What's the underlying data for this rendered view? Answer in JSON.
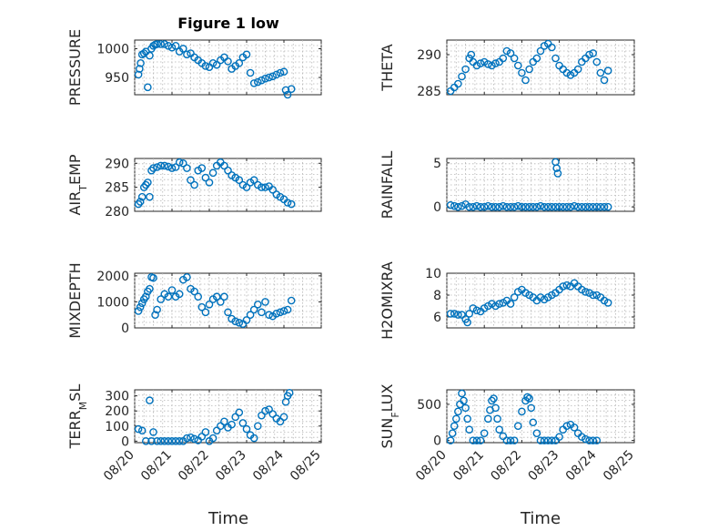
{
  "figure": {
    "title": "Figure 1 low"
  },
  "colors": {
    "series": "#0072BD",
    "axis": "#262626",
    "grid": "#b5b5b5"
  },
  "x_axis": {
    "label": "Time",
    "tick_labels": [
      "08/20",
      "08/21",
      "08/22",
      "08/23",
      "08/24",
      "08/25"
    ],
    "range_days": [
      0,
      5
    ]
  },
  "chart_data": [
    {
      "type": "scatter",
      "ylabel": "PRESSURE",
      "ylim": [
        920,
        1015
      ],
      "yticks": [
        950,
        1000
      ],
      "grid": true,
      "x": [
        0.1,
        0.13,
        0.16,
        0.2,
        0.25,
        0.3,
        0.35,
        0.4,
        0.45,
        0.5,
        0.55,
        0.6,
        0.7,
        0.8,
        0.9,
        1.0,
        1.1,
        1.2,
        1.3,
        1.4,
        1.5,
        1.6,
        1.7,
        1.8,
        1.9,
        2.0,
        2.1,
        2.2,
        2.3,
        2.4,
        2.5,
        2.6,
        2.7,
        2.8,
        2.9,
        3.0,
        3.1,
        3.2,
        3.3,
        3.4,
        3.5,
        3.6,
        3.7,
        3.8,
        3.9,
        4.0,
        4.05,
        4.1,
        4.2
      ],
      "y": [
        955,
        965,
        975,
        990,
        992,
        995,
        933,
        988,
        1000,
        1005,
        1007,
        1008,
        1008,
        1008,
        1005,
        1002,
        1005,
        995,
        1000,
        990,
        992,
        985,
        980,
        975,
        970,
        968,
        975,
        972,
        980,
        985,
        978,
        965,
        970,
        975,
        985,
        990,
        958,
        940,
        942,
        945,
        948,
        950,
        952,
        955,
        958,
        960,
        928,
        920,
        930
      ]
    },
    {
      "type": "scatter",
      "ylabel": "THETA",
      "ylim": [
        284.5,
        292
      ],
      "yticks": [
        285,
        290
      ],
      "grid": true,
      "x": [
        0.1,
        0.2,
        0.3,
        0.4,
        0.5,
        0.6,
        0.65,
        0.7,
        0.8,
        0.9,
        1.0,
        1.1,
        1.2,
        1.3,
        1.4,
        1.5,
        1.6,
        1.7,
        1.8,
        1.9,
        2.0,
        2.1,
        2.2,
        2.3,
        2.4,
        2.5,
        2.6,
        2.7,
        2.8,
        2.9,
        3.0,
        3.1,
        3.2,
        3.3,
        3.4,
        3.5,
        3.6,
        3.7,
        3.8,
        3.9,
        4.0,
        4.1,
        4.2,
        4.3
      ],
      "y": [
        285,
        285.5,
        286,
        287,
        288,
        289.5,
        290,
        289,
        288.5,
        288.8,
        289,
        288.7,
        288.5,
        288.8,
        289,
        289.5,
        290.5,
        290.2,
        289.5,
        288.5,
        287.5,
        286.5,
        288,
        289,
        289.5,
        290.5,
        291.2,
        291.5,
        291,
        289.5,
        288.5,
        288,
        287.5,
        287.2,
        287.5,
        288,
        289,
        289.5,
        290,
        290.2,
        289,
        287.5,
        286.5,
        287.8
      ]
    },
    {
      "type": "scatter",
      "ylabel": "AIR_TEMP",
      "ylim": [
        280,
        291
      ],
      "yticks": [
        280,
        285,
        290
      ],
      "grid": true,
      "x": [
        0.1,
        0.15,
        0.2,
        0.25,
        0.3,
        0.35,
        0.4,
        0.45,
        0.5,
        0.6,
        0.7,
        0.8,
        0.9,
        1.0,
        1.1,
        1.2,
        1.3,
        1.4,
        1.5,
        1.6,
        1.7,
        1.8,
        1.9,
        2.0,
        2.1,
        2.2,
        2.3,
        2.4,
        2.5,
        2.6,
        2.7,
        2.8,
        2.9,
        3.0,
        3.1,
        3.2,
        3.3,
        3.4,
        3.5,
        3.6,
        3.7,
        3.8,
        3.9,
        4.0,
        4.1,
        4.2
      ],
      "y": [
        281.5,
        282,
        283,
        285,
        285.5,
        286,
        283,
        288.5,
        289,
        289.2,
        289.5,
        289.5,
        289.3,
        289,
        289.2,
        290.2,
        290,
        289,
        286.5,
        285.5,
        288.5,
        289,
        287,
        286,
        288,
        289.5,
        290.2,
        289.5,
        288.5,
        287.5,
        287,
        286.5,
        285.5,
        285,
        286,
        286.5,
        285.5,
        285,
        285,
        285.2,
        284.5,
        283.5,
        283,
        282.5,
        281.8,
        281.5
      ]
    },
    {
      "type": "scatter",
      "ylabel": "RAINFALL",
      "ylim": [
        -0.5,
        5.5
      ],
      "yticks": [
        0,
        5
      ],
      "grid": true,
      "x": [
        0.1,
        0.2,
        0.3,
        0.4,
        0.5,
        0.6,
        0.7,
        0.8,
        0.9,
        1.0,
        1.1,
        1.2,
        1.3,
        1.4,
        1.5,
        1.6,
        1.7,
        1.8,
        1.9,
        2.0,
        2.1,
        2.2,
        2.3,
        2.4,
        2.5,
        2.6,
        2.7,
        2.8,
        2.9,
        3.0,
        3.1,
        3.2,
        3.3,
        3.4,
        3.5,
        3.6,
        3.7,
        3.8,
        3.9,
        4.0,
        4.1,
        4.2,
        4.3,
        2.9,
        2.93,
        2.96
      ],
      "y": [
        0.2,
        0.1,
        0,
        0.1,
        0.3,
        0,
        0,
        0.1,
        0,
        0,
        0.1,
        0,
        0,
        0,
        0.1,
        0,
        0,
        0,
        0.1,
        0,
        0,
        0,
        0,
        0,
        0.1,
        0,
        0,
        0,
        0,
        0,
        0,
        0,
        0,
        0.1,
        0,
        0,
        0,
        0,
        0,
        0,
        0,
        0,
        0,
        5.1,
        4.4,
        3.8
      ]
    },
    {
      "type": "scatter",
      "ylabel": "MIXDEPTH",
      "ylim": [
        0,
        2100
      ],
      "yticks": [
        0,
        1000,
        2000
      ],
      "grid": true,
      "x": [
        0.1,
        0.15,
        0.2,
        0.25,
        0.3,
        0.35,
        0.4,
        0.45,
        0.5,
        0.55,
        0.6,
        0.7,
        0.8,
        0.9,
        1.0,
        1.1,
        1.2,
        1.3,
        1.4,
        1.5,
        1.6,
        1.7,
        1.8,
        1.9,
        2.0,
        2.1,
        2.2,
        2.3,
        2.4,
        2.5,
        2.6,
        2.7,
        2.8,
        2.9,
        3.0,
        3.1,
        3.2,
        3.3,
        3.4,
        3.5,
        3.6,
        3.7,
        3.8,
        3.9,
        4.0,
        4.1,
        4.2
      ],
      "y": [
        650,
        800,
        950,
        1100,
        1200,
        1400,
        1500,
        1950,
        1920,
        500,
        700,
        1100,
        1300,
        1200,
        1450,
        1200,
        1300,
        1850,
        1950,
        1500,
        1400,
        1200,
        800,
        600,
        900,
        1100,
        1200,
        1000,
        1200,
        600,
        350,
        250,
        200,
        150,
        300,
        500,
        700,
        900,
        600,
        1000,
        500,
        450,
        550,
        600,
        650,
        700,
        1050
      ]
    },
    {
      "type": "scatter",
      "ylabel": "H2OMIXRA",
      "ylim": [
        5,
        10
      ],
      "yticks": [
        6,
        8,
        10
      ],
      "grid": true,
      "x": [
        0.1,
        0.2,
        0.3,
        0.4,
        0.5,
        0.55,
        0.6,
        0.7,
        0.8,
        0.9,
        1.0,
        1.1,
        1.2,
        1.3,
        1.4,
        1.5,
        1.6,
        1.7,
        1.8,
        1.9,
        2.0,
        2.1,
        2.2,
        2.3,
        2.4,
        2.5,
        2.6,
        2.7,
        2.8,
        2.9,
        3.0,
        3.1,
        3.2,
        3.3,
        3.4,
        3.5,
        3.6,
        3.7,
        3.8,
        3.9,
        4.0,
        4.1,
        4.2,
        4.3
      ],
      "y": [
        6.3,
        6.3,
        6.2,
        6.2,
        5.8,
        5.5,
        6.3,
        6.8,
        6.6,
        6.5,
        6.8,
        7,
        7.2,
        7,
        7.2,
        7.3,
        7.5,
        7.2,
        7.8,
        8.3,
        8.5,
        8.2,
        8,
        7.8,
        7.5,
        7.8,
        7.6,
        7.8,
        8,
        8.2,
        8.5,
        8.8,
        8.9,
        8.8,
        9.1,
        8.8,
        8.5,
        8.3,
        8.2,
        8,
        8,
        7.8,
        7.5,
        7.3
      ]
    },
    {
      "type": "scatter",
      "ylabel": "TERR_MSL",
      "ylim": [
        -10,
        340
      ],
      "yticks": [
        0,
        100,
        200,
        300
      ],
      "grid": true,
      "x": [
        0.1,
        0.2,
        0.3,
        0.4,
        0.45,
        0.5,
        0.6,
        0.7,
        0.8,
        0.9,
        1.0,
        1.1,
        1.2,
        1.3,
        1.4,
        1.5,
        1.6,
        1.7,
        1.8,
        1.9,
        2.0,
        2.1,
        2.2,
        2.3,
        2.4,
        2.5,
        2.6,
        2.7,
        2.8,
        2.9,
        3.0,
        3.1,
        3.2,
        3.3,
        3.4,
        3.5,
        3.6,
        3.7,
        3.8,
        3.9,
        4.0,
        4.05,
        4.1,
        4.15
      ],
      "y": [
        80,
        70,
        0,
        270,
        0,
        60,
        0,
        0,
        0,
        0,
        0,
        0,
        0,
        0,
        20,
        25,
        15,
        5,
        30,
        60,
        0,
        20,
        70,
        100,
        130,
        90,
        110,
        160,
        190,
        120,
        80,
        40,
        20,
        100,
        170,
        200,
        210,
        180,
        150,
        130,
        160,
        260,
        300,
        320
      ]
    },
    {
      "type": "scatter",
      "ylabel": "SUN_FLUX",
      "ylim": [
        -30,
        700
      ],
      "yticks": [
        0,
        500
      ],
      "grid": true,
      "x": [
        0.1,
        0.15,
        0.2,
        0.25,
        0.3,
        0.35,
        0.4,
        0.45,
        0.5,
        0.55,
        0.6,
        0.7,
        0.8,
        0.9,
        1.0,
        1.1,
        1.15,
        1.2,
        1.25,
        1.3,
        1.35,
        1.4,
        1.5,
        1.6,
        1.7,
        1.8,
        1.9,
        2.0,
        2.1,
        2.15,
        2.2,
        2.25,
        2.3,
        2.4,
        2.5,
        2.6,
        2.7,
        2.8,
        2.9,
        3.0,
        3.1,
        3.2,
        3.3,
        3.4,
        3.5,
        3.6,
        3.7,
        3.8,
        3.9,
        4.0
      ],
      "y": [
        0,
        100,
        200,
        300,
        400,
        500,
        650,
        550,
        450,
        300,
        150,
        0,
        0,
        0,
        100,
        300,
        420,
        550,
        580,
        450,
        300,
        150,
        60,
        0,
        0,
        0,
        200,
        400,
        550,
        600,
        580,
        450,
        250,
        100,
        0,
        0,
        0,
        0,
        0,
        50,
        150,
        200,
        220,
        180,
        100,
        50,
        20,
        0,
        0,
        0
      ]
    }
  ]
}
